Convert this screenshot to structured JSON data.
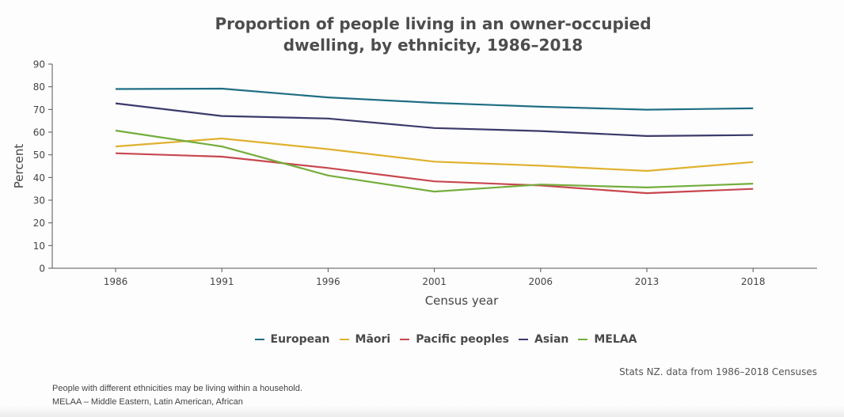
{
  "chart_data": {
    "type": "line",
    "title": [
      "Proportion of people living in an owner-occupied",
      "dwelling, by ethnicity, 1986–2018"
    ],
    "xlabel": "Census year",
    "ylabel": "Percent",
    "ylim": [
      0,
      90
    ],
    "yticks": [
      0,
      10,
      20,
      30,
      40,
      50,
      60,
      70,
      80,
      90
    ],
    "categories": [
      "1986",
      "1991",
      "1996",
      "2001",
      "2006",
      "2013",
      "2018"
    ],
    "grid": false,
    "legend_position": "bottom-center",
    "series": [
      {
        "name": "European",
        "color": "#1f6e84",
        "values": [
          79,
          79.2,
          75.3,
          72.9,
          71.2,
          69.9,
          70.5
        ]
      },
      {
        "name": "Māori",
        "color": "#e0b12f",
        "values": [
          53.7,
          57.2,
          52.5,
          47.0,
          45.2,
          42.9,
          46.8
        ]
      },
      {
        "name": "Pacific peoples",
        "color": "#c8474f",
        "values": [
          50.7,
          49.2,
          44.2,
          38.3,
          36.5,
          33.1,
          35.0
        ]
      },
      {
        "name": "Asian",
        "color": "#3b3a6b",
        "values": [
          72.7,
          67.1,
          66.0,
          61.8,
          60.5,
          58.3,
          58.7
        ]
      },
      {
        "name": "MELAA",
        "color": "#74ad3c",
        "values": [
          60.7,
          53.7,
          40.9,
          33.8,
          36.9,
          35.6,
          37.3
        ]
      }
    ]
  },
  "source": "Stats NZ. data from 1986–2018 Censuses",
  "notes": [
    "People with different ethnicities may be living within a household.",
    "MELAA – Middle Eastern, Latin American, African"
  ]
}
